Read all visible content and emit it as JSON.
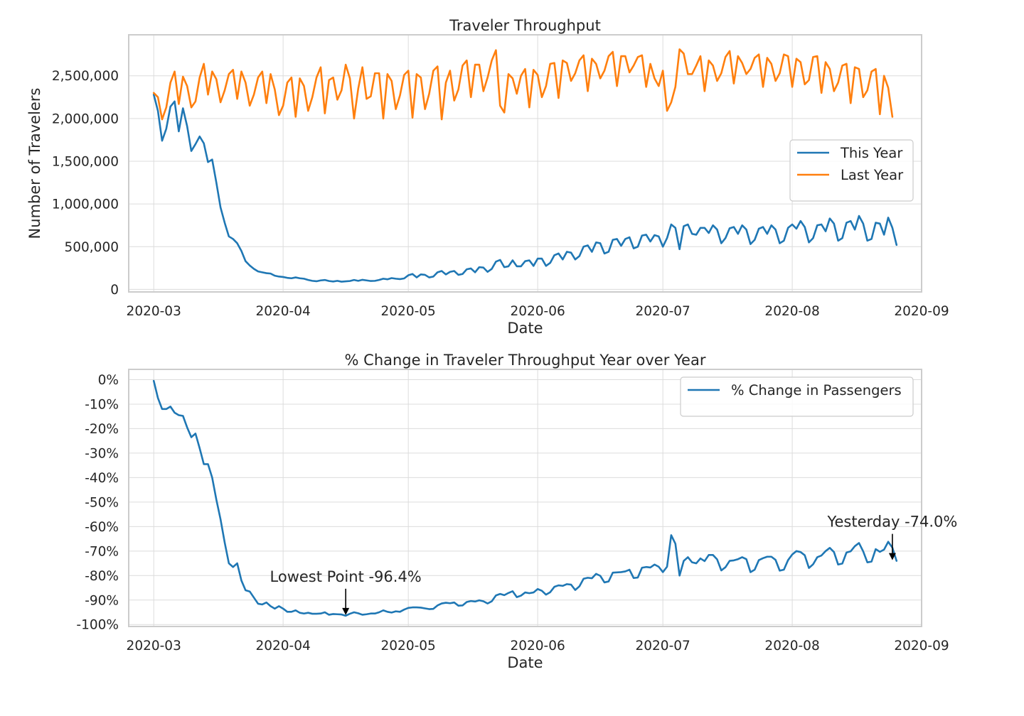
{
  "chart_data": [
    {
      "type": "line",
      "title": "Traveler Throughput",
      "xlabel": "Date",
      "ylabel": "Number of Travelers",
      "xlim": [
        "2020-02-24",
        "2020-09-01"
      ],
      "ylim": [
        -30000,
        2980000
      ],
      "x_ticks": [
        "2020-03",
        "2020-04",
        "2020-05",
        "2020-06",
        "2020-07",
        "2020-08",
        "2020-09"
      ],
      "y_ticks": [
        {
          "value": 0,
          "label": "0"
        },
        {
          "value": 500000,
          "label": "500,000"
        },
        {
          "value": 1000000,
          "label": "1,000,000"
        },
        {
          "value": 1500000,
          "label": "1,500,000"
        },
        {
          "value": 2000000,
          "label": "2,000,000"
        },
        {
          "value": 2500000,
          "label": "2,500,000"
        }
      ],
      "grid": true,
      "legend": {
        "placement": "center-right",
        "entries": [
          "This Year",
          "Last Year"
        ]
      },
      "colors": {
        "This Year": "#1f77b4",
        "Last Year": "#ff7f0e"
      },
      "x_start": "2020-03-01",
      "series": [
        {
          "name": "This Year",
          "values": [
            2280000,
            2090000,
            1740000,
            1880000,
            2140000,
            2200000,
            1850000,
            2120000,
            1910000,
            1620000,
            1700000,
            1790000,
            1710000,
            1490000,
            1520000,
            1250000,
            960000,
            780000,
            620000,
            590000,
            540000,
            450000,
            330000,
            280000,
            240000,
            210000,
            200000,
            190000,
            185000,
            160000,
            150000,
            145000,
            135000,
            130000,
            140000,
            130000,
            125000,
            110000,
            100000,
            95000,
            105000,
            110000,
            98000,
            92000,
            100000,
            90000,
            94000,
            98000,
            110000,
            100000,
            112000,
            105000,
            98000,
            100000,
            110000,
            125000,
            118000,
            132000,
            125000,
            120000,
            128000,
            165000,
            180000,
            140000,
            175000,
            170000,
            140000,
            150000,
            200000,
            215000,
            175000,
            205000,
            215000,
            170000,
            180000,
            235000,
            245000,
            200000,
            260000,
            255000,
            205000,
            240000,
            325000,
            345000,
            260000,
            270000,
            340000,
            270000,
            270000,
            330000,
            340000,
            275000,
            360000,
            360000,
            275000,
            310000,
            400000,
            420000,
            350000,
            440000,
            430000,
            350000,
            390000,
            500000,
            515000,
            440000,
            550000,
            540000,
            420000,
            440000,
            580000,
            590000,
            510000,
            590000,
            610000,
            480000,
            500000,
            630000,
            640000,
            560000,
            635000,
            620000,
            500000,
            600000,
            760000,
            720000,
            470000,
            740000,
            760000,
            650000,
            640000,
            720000,
            720000,
            660000,
            750000,
            700000,
            540000,
            600000,
            715000,
            730000,
            650000,
            750000,
            700000,
            530000,
            580000,
            710000,
            730000,
            650000,
            750000,
            700000,
            540000,
            570000,
            720000,
            760000,
            710000,
            800000,
            730000,
            550000,
            600000,
            750000,
            760000,
            680000,
            830000,
            770000,
            570000,
            600000,
            780000,
            800000,
            700000,
            860000,
            770000,
            570000,
            590000,
            780000,
            770000,
            640000,
            840000,
            720000,
            520000
          ]
        },
        {
          "name": "Last Year",
          "values": [
            2300000,
            2250000,
            1990000,
            2130000,
            2420000,
            2550000,
            2170000,
            2490000,
            2380000,
            2130000,
            2200000,
            2480000,
            2640000,
            2280000,
            2550000,
            2460000,
            2190000,
            2330000,
            2520000,
            2570000,
            2230000,
            2550000,
            2420000,
            2150000,
            2280000,
            2480000,
            2550000,
            2180000,
            2520000,
            2340000,
            2040000,
            2150000,
            2420000,
            2480000,
            2020000,
            2470000,
            2380000,
            2090000,
            2250000,
            2480000,
            2600000,
            2060000,
            2450000,
            2480000,
            2220000,
            2330000,
            2630000,
            2470000,
            2000000,
            2350000,
            2600000,
            2230000,
            2260000,
            2530000,
            2530000,
            2000000,
            2520000,
            2440000,
            2110000,
            2270000,
            2510000,
            2560000,
            2010000,
            2520000,
            2480000,
            2110000,
            2290000,
            2560000,
            2610000,
            1990000,
            2420000,
            2560000,
            2210000,
            2340000,
            2620000,
            2680000,
            2250000,
            2630000,
            2630000,
            2320000,
            2480000,
            2680000,
            2800000,
            2150000,
            2070000,
            2520000,
            2470000,
            2290000,
            2500000,
            2580000,
            2130000,
            2570000,
            2510000,
            2250000,
            2380000,
            2640000,
            2650000,
            2240000,
            2680000,
            2650000,
            2440000,
            2530000,
            2680000,
            2740000,
            2320000,
            2700000,
            2640000,
            2470000,
            2560000,
            2730000,
            2780000,
            2380000,
            2730000,
            2730000,
            2540000,
            2620000,
            2720000,
            2740000,
            2370000,
            2640000,
            2470000,
            2380000,
            2560000,
            2090000,
            2190000,
            2370000,
            2810000,
            2760000,
            2520000,
            2520000,
            2620000,
            2730000,
            2320000,
            2680000,
            2620000,
            2440000,
            2530000,
            2720000,
            2790000,
            2410000,
            2730000,
            2650000,
            2520000,
            2580000,
            2710000,
            2750000,
            2370000,
            2710000,
            2640000,
            2440000,
            2530000,
            2750000,
            2730000,
            2370000,
            2700000,
            2660000,
            2400000,
            2450000,
            2720000,
            2730000,
            2300000,
            2660000,
            2580000,
            2320000,
            2420000,
            2620000,
            2640000,
            2180000,
            2600000,
            2580000,
            2250000,
            2330000,
            2550000,
            2580000,
            2050000,
            2500000,
            2360000,
            2020000
          ]
        }
      ]
    },
    {
      "type": "line",
      "title": "% Change in Traveler Throughput Year over Year",
      "xlabel": "Date",
      "ylabel": "",
      "xlim": [
        "2020-02-24",
        "2020-09-01"
      ],
      "ylim": [
        -100.8,
        4.2
      ],
      "x_ticks": [
        "2020-03",
        "2020-04",
        "2020-05",
        "2020-06",
        "2020-07",
        "2020-08",
        "2020-09"
      ],
      "y_ticks": [
        {
          "value": 0,
          "label": "0%"
        },
        {
          "value": -10,
          "label": "-10%"
        },
        {
          "value": -20,
          "label": "-20%"
        },
        {
          "value": -30,
          "label": "-30%"
        },
        {
          "value": -40,
          "label": "-40%"
        },
        {
          "value": -50,
          "label": "-50%"
        },
        {
          "value": -60,
          "label": "-60%"
        },
        {
          "value": -70,
          "label": "-70%"
        },
        {
          "value": -80,
          "label": "-80%"
        },
        {
          "value": -90,
          "label": "-90%"
        },
        {
          "value": -100,
          "label": "-100%"
        }
      ],
      "grid": true,
      "legend": {
        "placement": "top-right",
        "entries": [
          "% Change in Passengers"
        ]
      },
      "colors": {
        "% Change in Passengers": "#1f77b4"
      },
      "x_start": "2020-03-01",
      "series": [
        {
          "name": "% Change in Passengers",
          "values": [
            -0.5,
            -7.5,
            -12,
            -12,
            -11,
            -13.5,
            -14.5,
            -14.8,
            -19.5,
            -23.5,
            -22,
            -28,
            -34.5,
            -34.5,
            -40,
            -49,
            -57,
            -66.5,
            -75,
            -76.5,
            -75,
            -82,
            -86,
            -86.5,
            -89,
            -91.5,
            -91.8,
            -91,
            -92.5,
            -93.5,
            -92.5,
            -93.5,
            -94.8,
            -94.8,
            -94.2,
            -95.2,
            -95.5,
            -95.2,
            -95.6,
            -95.6,
            -95.5,
            -95,
            -96,
            -95.7,
            -95.8,
            -95.9,
            -96.4,
            -95.6,
            -95,
            -95.4,
            -96,
            -95.8,
            -95.5,
            -95.5,
            -95,
            -94.2,
            -94.8,
            -95.1,
            -94.6,
            -94.8,
            -93.9,
            -93.2,
            -93,
            -93,
            -93.1,
            -93.4,
            -93.7,
            -93.6,
            -92.2,
            -91.4,
            -91.1,
            -91.3,
            -91,
            -92.3,
            -92.2,
            -90.8,
            -90.4,
            -90.6,
            -90.1,
            -90.5,
            -91.4,
            -90.5,
            -88.1,
            -87.5,
            -88,
            -87.1,
            -86.4,
            -88.8,
            -88.2,
            -86.9,
            -87.2,
            -86.9,
            -85.5,
            -86.2,
            -87.8,
            -86.8,
            -84.6,
            -84,
            -84.2,
            -83.5,
            -83.7,
            -85.9,
            -84.4,
            -81.3,
            -80.9,
            -81.1,
            -79.3,
            -80.1,
            -82.8,
            -82.4,
            -78.8,
            -78.7,
            -78.6,
            -78.3,
            -77.6,
            -81,
            -80.8,
            -76.8,
            -76.5,
            -76.7,
            -75.5,
            -76.4,
            -78.6,
            -76.4,
            -63.5,
            -67,
            -80,
            -74,
            -72.5,
            -74.6,
            -75,
            -73,
            -74.1,
            -71.6,
            -71.6,
            -73.4,
            -77.9,
            -76.6,
            -74,
            -73.8,
            -73.3,
            -72.5,
            -73.3,
            -78.6,
            -77.6,
            -73.7,
            -72.9,
            -72.3,
            -72.3,
            -73.6,
            -78,
            -77.6,
            -73.7,
            -71.4,
            -70,
            -70.4,
            -71.7,
            -76.9,
            -75.4,
            -72.5,
            -71.8,
            -70,
            -68.7,
            -70.4,
            -75.5,
            -75.1,
            -70.6,
            -70.1,
            -68,
            -66.7,
            -70.1,
            -74.6,
            -74.3,
            -69.2,
            -70.3,
            -69.4,
            -66.2,
            -68.6,
            -74
          ]
        }
      ],
      "annotations": [
        {
          "text": "Lowest Point -96.4%",
          "x": "2020-04-16",
          "y": -96.4
        },
        {
          "text": "Yesterday -74.0%",
          "x": "2020-08-25",
          "y": -74.0
        }
      ]
    }
  ]
}
